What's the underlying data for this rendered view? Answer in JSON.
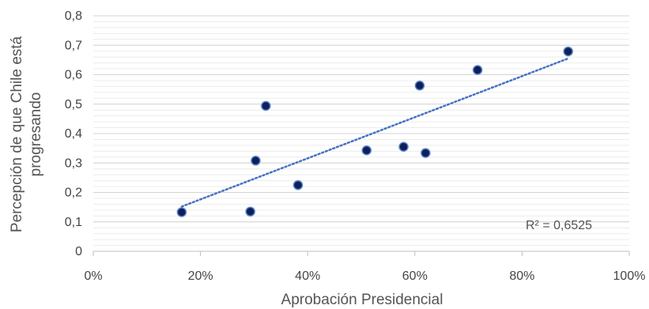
{
  "chart_data": {
    "type": "scatter",
    "xlabel": "Aprobación Presidencial",
    "ylabel": [
      "Percepción de que Chile está",
      "progresando"
    ],
    "xlim": [
      0,
      1
    ],
    "ylim": [
      0,
      0.8
    ],
    "x_ticks": [
      {
        "value": 0,
        "label": "0%"
      },
      {
        "value": 0.2,
        "label": "20%"
      },
      {
        "value": 0.4,
        "label": "40%"
      },
      {
        "value": 0.6,
        "label": "60%"
      },
      {
        "value": 0.8,
        "label": "80%"
      },
      {
        "value": 1.0,
        "label": "100%"
      }
    ],
    "y_ticks": [
      {
        "value": 0,
        "label": "0"
      },
      {
        "value": 0.1,
        "label": "0,1"
      },
      {
        "value": 0.2,
        "label": "0,2"
      },
      {
        "value": 0.3,
        "label": "0,3"
      },
      {
        "value": 0.4,
        "label": "0,4"
      },
      {
        "value": 0.5,
        "label": "0,5"
      },
      {
        "value": 0.6,
        "label": "0,6"
      },
      {
        "value": 0.7,
        "label": "0,7"
      },
      {
        "value": 0.8,
        "label": "0,8"
      }
    ],
    "grid": true,
    "series": [
      {
        "points": [
          {
            "x": 0.165,
            "y": 0.133
          },
          {
            "x": 0.293,
            "y": 0.135
          },
          {
            "x": 0.303,
            "y": 0.308
          },
          {
            "x": 0.322,
            "y": 0.494
          },
          {
            "x": 0.382,
            "y": 0.225
          },
          {
            "x": 0.51,
            "y": 0.343
          },
          {
            "x": 0.579,
            "y": 0.355
          },
          {
            "x": 0.609,
            "y": 0.563
          },
          {
            "x": 0.62,
            "y": 0.334
          },
          {
            "x": 0.717,
            "y": 0.616
          },
          {
            "x": 0.886,
            "y": 0.679
          }
        ],
        "marker_color": "#0d1f5c",
        "marker_edge_color": "#5b84c4"
      }
    ],
    "trendline": {
      "type": "linear",
      "from": {
        "x": 0.165,
        "y": 0.152
      },
      "to": {
        "x": 0.886,
        "y": 0.655
      },
      "color": "#4472c4",
      "style": "dotted",
      "label": "R² = 0,6525"
    }
  }
}
